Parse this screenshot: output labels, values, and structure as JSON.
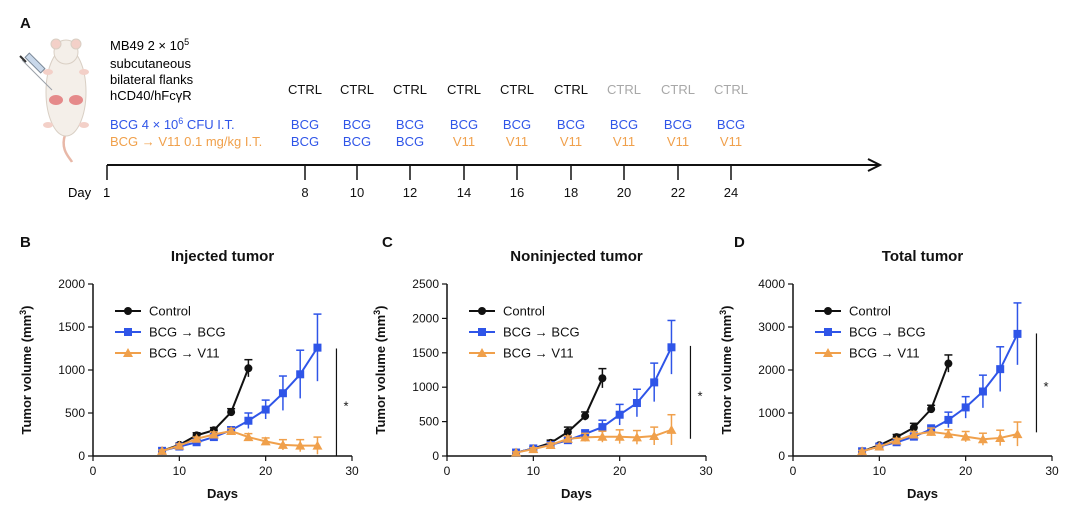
{
  "figure": {
    "panel_labels": [
      "A",
      "B",
      "C",
      "D"
    ]
  },
  "schema": {
    "setup_lines": [
      "MB49 2 × 10",
      "subcutaneous",
      "bilateral flanks",
      "hCD40/hFcγR"
    ],
    "setup_superscript": "5",
    "bcg_line": {
      "text_before": "BCG 4 × 10",
      "superscript": "6",
      "text_after": " CFU I.T."
    },
    "v11_line": "BCG → V11 0.1 mg/kg I.T.",
    "day_label": "Day",
    "colors": {
      "black": "#111111",
      "blue": "#2f55e8",
      "orange": "#f0a04b",
      "gray": "#a8a8a8"
    },
    "columns": [
      {
        "day": "8",
        "ctrl": "CTRL",
        "ctrl_color": "black",
        "row2": "BCG",
        "row3": "BCG",
        "row3_color": "blue"
      },
      {
        "day": "10",
        "ctrl": "CTRL",
        "ctrl_color": "black",
        "row2": "BCG",
        "row3": "BCG",
        "row3_color": "blue"
      },
      {
        "day": "12",
        "ctrl": "CTRL",
        "ctrl_color": "black",
        "row2": "BCG",
        "row3": "BCG",
        "row3_color": "blue"
      },
      {
        "day": "14",
        "ctrl": "CTRL",
        "ctrl_color": "black",
        "row2": "BCG",
        "row3": "V11",
        "row3_color": "orange"
      },
      {
        "day": "16",
        "ctrl": "CTRL",
        "ctrl_color": "black",
        "row2": "BCG",
        "row3": "V11",
        "row3_color": "orange"
      },
      {
        "day": "18",
        "ctrl": "CTRL",
        "ctrl_color": "black",
        "row2": "BCG",
        "row3": "V11",
        "row3_color": "orange"
      },
      {
        "day": "20",
        "ctrl": "CTRL",
        "ctrl_color": "gray",
        "row2": "BCG",
        "row3": "V11",
        "row3_color": "orange"
      },
      {
        "day": "22",
        "ctrl": "CTRL",
        "ctrl_color": "gray",
        "row2": "BCG",
        "row3": "V11",
        "row3_color": "orange"
      },
      {
        "day": "24",
        "ctrl": "CTRL",
        "ctrl_color": "gray",
        "row2": "BCG",
        "row3": "V11",
        "row3_color": "orange"
      }
    ],
    "start_day": "1"
  },
  "chart_data": [
    {
      "panel": "B",
      "type": "line",
      "title": "Injected tumor",
      "xlabel": "Days",
      "ylabel": "Tumor volume (mm",
      "ylabel_sup": "3",
      "ylabel_end": ")",
      "xlim": [
        0,
        30
      ],
      "ylim": [
        0,
        2000
      ],
      "xticks": [
        0,
        10,
        20,
        30
      ],
      "yticks": [
        0,
        500,
        1000,
        1500,
        2000
      ],
      "significance": "*",
      "sig_range": [
        0,
        1250
      ],
      "legend_position": "top-left",
      "series": [
        {
          "name": "Control",
          "color": "#111111",
          "marker": "circle",
          "x": [
            8,
            10,
            12,
            14,
            16,
            18
          ],
          "y": [
            60,
            130,
            240,
            300,
            510,
            1020
          ],
          "err": [
            10,
            20,
            30,
            30,
            40,
            100
          ]
        },
        {
          "name": "BCG → BCG",
          "color": "#2f55e8",
          "marker": "square",
          "x": [
            8,
            10,
            12,
            14,
            16,
            18,
            20,
            22,
            24,
            26
          ],
          "y": [
            60,
            110,
            160,
            220,
            300,
            410,
            540,
            730,
            950,
            1260
          ],
          "err": [
            10,
            20,
            30,
            30,
            40,
            90,
            110,
            200,
            280,
            390
          ]
        },
        {
          "name": "BCG → V11",
          "color": "#f0a04b",
          "marker": "triangle",
          "x": [
            8,
            10,
            12,
            14,
            16,
            18,
            20,
            22,
            24,
            26
          ],
          "y": [
            60,
            120,
            200,
            250,
            290,
            220,
            170,
            130,
            120,
            120
          ],
          "err": [
            10,
            20,
            20,
            30,
            30,
            40,
            40,
            60,
            70,
            100
          ]
        }
      ]
    },
    {
      "panel": "C",
      "type": "line",
      "title": "Noninjected tumor",
      "xlabel": "Days",
      "ylabel": "Tumor volume (mm",
      "ylabel_sup": "3",
      "ylabel_end": ")",
      "xlim": [
        0,
        30
      ],
      "ylim": [
        0,
        2500
      ],
      "xticks": [
        0,
        10,
        20,
        30
      ],
      "yticks": [
        0,
        500,
        1000,
        1500,
        2000,
        2500
      ],
      "significance": "*",
      "sig_range": [
        250,
        1600
      ],
      "legend_position": "top-left",
      "series": [
        {
          "name": "Control",
          "color": "#111111",
          "marker": "circle",
          "x": [
            8,
            10,
            12,
            14,
            16,
            18
          ],
          "y": [
            50,
            110,
            190,
            350,
            580,
            1130
          ],
          "err": [
            10,
            20,
            40,
            70,
            60,
            140
          ]
        },
        {
          "name": "BCG → BCG",
          "color": "#2f55e8",
          "marker": "square",
          "x": [
            8,
            10,
            12,
            14,
            16,
            18,
            20,
            22,
            24,
            26
          ],
          "y": [
            50,
            110,
            160,
            230,
            320,
            420,
            600,
            770,
            1070,
            1580
          ],
          "err": [
            10,
            20,
            30,
            40,
            60,
            100,
            150,
            200,
            280,
            390
          ]
        },
        {
          "name": "BCG → V11",
          "color": "#f0a04b",
          "marker": "triangle",
          "x": [
            8,
            10,
            12,
            14,
            16,
            18,
            20,
            22,
            24,
            26
          ],
          "y": [
            50,
            100,
            160,
            250,
            270,
            280,
            280,
            270,
            290,
            380
          ],
          "err": [
            10,
            20,
            30,
            40,
            60,
            80,
            100,
            100,
            130,
            220
          ]
        }
      ]
    },
    {
      "panel": "D",
      "type": "line",
      "title": "Total tumor",
      "xlabel": "Days",
      "ylabel": "Tumor volume (mm",
      "ylabel_sup": "3",
      "ylabel_end": ")",
      "xlim": [
        0,
        30
      ],
      "ylim": [
        0,
        4000
      ],
      "xticks": [
        0,
        10,
        20,
        30
      ],
      "yticks": [
        0,
        1000,
        2000,
        3000,
        4000
      ],
      "significance": "*",
      "sig_range": [
        550,
        2850
      ],
      "legend_position": "top-left",
      "series": [
        {
          "name": "Control",
          "color": "#111111",
          "marker": "circle",
          "x": [
            8,
            10,
            12,
            14,
            16,
            18
          ],
          "y": [
            110,
            250,
            440,
            660,
            1090,
            2150
          ],
          "err": [
            20,
            40,
            60,
            100,
            90,
            200
          ]
        },
        {
          "name": "BCG → BCG",
          "color": "#2f55e8",
          "marker": "square",
          "x": [
            8,
            10,
            12,
            14,
            16,
            18,
            20,
            22,
            24,
            26
          ],
          "y": [
            110,
            220,
            320,
            450,
            620,
            840,
            1130,
            1500,
            2020,
            2840
          ],
          "err": [
            20,
            40,
            60,
            80,
            100,
            180,
            250,
            380,
            520,
            720
          ]
        },
        {
          "name": "BCG → V11",
          "color": "#f0a04b",
          "marker": "triangle",
          "x": [
            8,
            10,
            12,
            14,
            16,
            18,
            20,
            22,
            24,
            26
          ],
          "y": [
            110,
            220,
            360,
            500,
            560,
            510,
            450,
            390,
            420,
            510
          ],
          "err": [
            20,
            30,
            50,
            70,
            90,
            100,
            120,
            140,
            180,
            280
          ]
        }
      ]
    }
  ]
}
